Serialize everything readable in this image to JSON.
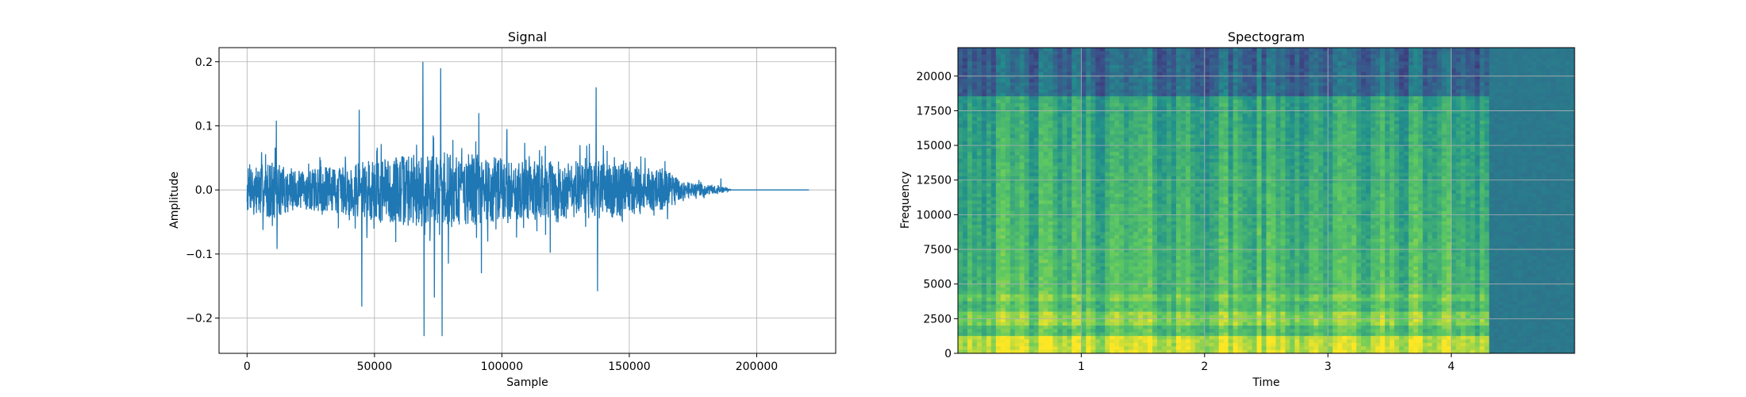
{
  "chart_data": [
    {
      "type": "line",
      "title": "Signal",
      "xlabel": "Sample",
      "ylabel": "Amplitude",
      "xlim": [
        -11000,
        231000
      ],
      "ylim": [
        -0.255,
        0.222
      ],
      "grid": true,
      "line_color": "#1f77b4",
      "x_ticks": [
        0,
        50000,
        100000,
        150000,
        200000
      ],
      "x_tick_labels": [
        "0",
        "50000",
        "100000",
        "150000",
        "200000"
      ],
      "y_ticks": [
        0.2,
        0.1,
        0.0,
        -0.1,
        -0.2
      ],
      "y_tick_labels": [
        "0.2",
        "0.1",
        "0.0",
        "−0.1",
        "−0.2"
      ],
      "total_samples": 220500,
      "envelope": {
        "x": [
          0,
          10000,
          20000,
          40000,
          60000,
          80000,
          100000,
          120000,
          140000,
          160000,
          165000,
          170000,
          180000,
          188000,
          190000,
          220500
        ],
        "amplitude": [
          0.035,
          0.045,
          0.03,
          0.04,
          0.055,
          0.06,
          0.05,
          0.045,
          0.045,
          0.035,
          0.03,
          0.015,
          0.008,
          0.004,
          0.0,
          0.0
        ]
      },
      "peaks": [
        {
          "x": 1000,
          "y": 0.04
        },
        {
          "x": 11500,
          "y": 0.108
        },
        {
          "x": 11800,
          "y": -0.092
        },
        {
          "x": 44000,
          "y": 0.125
        },
        {
          "x": 45000,
          "y": -0.182
        },
        {
          "x": 47000,
          "y": -0.075
        },
        {
          "x": 69000,
          "y": 0.2
        },
        {
          "x": 69500,
          "y": -0.228
        },
        {
          "x": 73000,
          "y": 0.085
        },
        {
          "x": 73500,
          "y": -0.168
        },
        {
          "x": 76000,
          "y": 0.19
        },
        {
          "x": 76500,
          "y": -0.228
        },
        {
          "x": 79000,
          "y": -0.115
        },
        {
          "x": 91000,
          "y": 0.12
        },
        {
          "x": 92000,
          "y": -0.13
        },
        {
          "x": 102000,
          "y": 0.095
        },
        {
          "x": 119000,
          "y": -0.098
        },
        {
          "x": 137000,
          "y": 0.16
        },
        {
          "x": 137500,
          "y": -0.158
        },
        {
          "x": 164000,
          "y": 0.045
        },
        {
          "x": 186000,
          "y": 0.018
        }
      ]
    },
    {
      "type": "heatmap",
      "title": "Spectogram",
      "xlabel": "Time",
      "ylabel": "Frequency",
      "xlim": [
        0,
        5.0
      ],
      "ylim": [
        0,
        22050
      ],
      "grid": true,
      "x_ticks": [
        1,
        2,
        3,
        4
      ],
      "x_tick_labels": [
        "1",
        "2",
        "3",
        "4"
      ],
      "y_ticks": [
        0,
        2500,
        5000,
        7500,
        10000,
        12500,
        15000,
        17500,
        20000
      ],
      "y_tick_labels": [
        "0",
        "2500",
        "5000",
        "7500",
        "10000",
        "12500",
        "15000",
        "17500",
        "20000"
      ],
      "signal_end_time": 4.32,
      "colormap": [
        "#440154",
        "#3b528b",
        "#21918c",
        "#5ec962",
        "#fde725"
      ]
    }
  ]
}
